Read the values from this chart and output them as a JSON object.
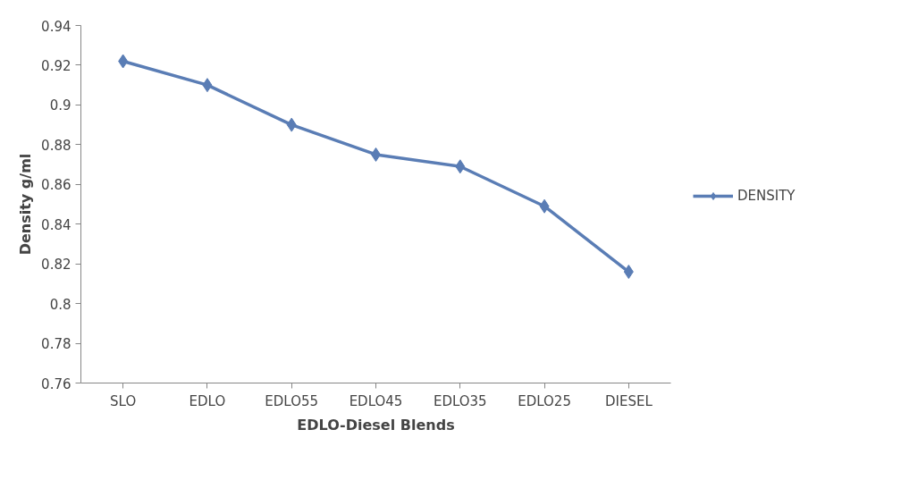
{
  "chart_data": {
    "type": "line",
    "xlabel": "EDLO-Diesel Blends",
    "ylabel": "Density g/ml",
    "categories": [
      "SLO",
      "EDLO",
      "EDLO55",
      "EDLO45",
      "EDLO35",
      "EDLO25",
      "DIESEL"
    ],
    "series": [
      {
        "name": "DENSITY",
        "color": "#5a7db5",
        "values": [
          0.922,
          0.91,
          0.89,
          0.875,
          0.869,
          0.849,
          0.816
        ]
      }
    ],
    "ylim": [
      0.76,
      0.94
    ],
    "yticks": [
      0.76,
      0.78,
      0.8,
      0.82,
      0.84,
      0.86,
      0.88,
      0.9,
      0.92,
      0.94
    ],
    "grid": false,
    "legend": "right",
    "marker": "diamond",
    "line_style": "solid"
  }
}
